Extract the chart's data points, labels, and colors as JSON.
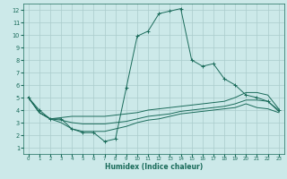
{
  "xlabel": "Humidex (Indice chaleur)",
  "xlim": [
    -0.5,
    23.5
  ],
  "ylim": [
    0.5,
    12.5
  ],
  "xticks": [
    0,
    1,
    2,
    3,
    4,
    5,
    6,
    7,
    8,
    9,
    10,
    11,
    12,
    13,
    14,
    15,
    16,
    17,
    18,
    19,
    20,
    21,
    22,
    23
  ],
  "yticks": [
    1,
    2,
    3,
    4,
    5,
    6,
    7,
    8,
    9,
    10,
    11,
    12
  ],
  "bg": "#cce9e9",
  "grid_color": "#aacccc",
  "lc": "#1a6b5a",
  "main_curve": [
    5.0,
    4.0,
    3.3,
    3.3,
    2.5,
    2.2,
    2.2,
    1.5,
    1.7,
    5.8,
    9.9,
    10.3,
    11.7,
    11.9,
    12.1,
    8.0,
    7.5,
    7.7,
    6.5,
    6.0,
    5.2,
    5.0,
    4.7,
    4.0
  ],
  "line2": [
    5.0,
    3.8,
    3.3,
    3.4,
    3.5,
    3.5,
    3.5,
    3.5,
    3.6,
    3.7,
    3.8,
    4.0,
    4.1,
    4.2,
    4.3,
    4.4,
    4.5,
    4.6,
    4.7,
    5.0,
    5.4,
    5.4,
    5.2,
    4.1
  ],
  "line3": [
    5.0,
    3.8,
    3.3,
    3.2,
    3.0,
    2.9,
    2.9,
    2.9,
    3.0,
    3.1,
    3.3,
    3.5,
    3.6,
    3.7,
    3.9,
    4.0,
    4.1,
    4.2,
    4.3,
    4.5,
    4.8,
    4.8,
    4.7,
    3.9
  ],
  "line4": [
    5.0,
    3.8,
    3.3,
    3.0,
    2.5,
    2.3,
    2.3,
    2.3,
    2.5,
    2.7,
    3.0,
    3.2,
    3.3,
    3.5,
    3.7,
    3.8,
    3.9,
    4.0,
    4.1,
    4.2,
    4.5,
    4.2,
    4.1,
    3.8
  ]
}
